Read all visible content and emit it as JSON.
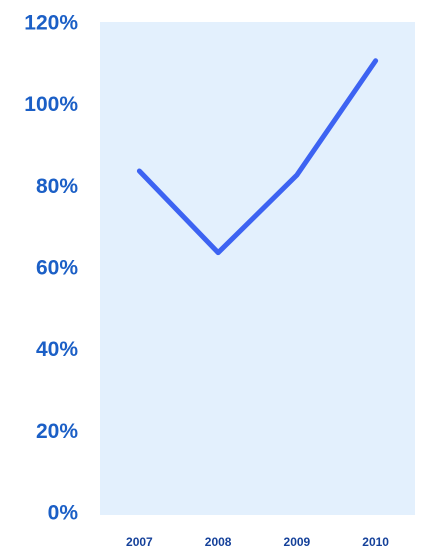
{
  "chart_data": {
    "type": "line",
    "categories": [
      "2007",
      "2008",
      "2009",
      "2010"
    ],
    "series": [
      {
        "name": null,
        "color": "#3d63f2",
        "values": [
          84,
          64,
          83,
          111
        ]
      }
    ],
    "ylim": [
      0,
      120
    ],
    "yticks": [
      {
        "value": 0,
        "label": "0%"
      },
      {
        "value": 20,
        "label": "20%"
      },
      {
        "value": 40,
        "label": "40%"
      },
      {
        "value": 60,
        "label": "60%"
      },
      {
        "value": 80,
        "label": "80%"
      },
      {
        "value": 100,
        "label": "100%"
      },
      {
        "value": 120,
        "label": "120%"
      }
    ],
    "grid": false
  }
}
